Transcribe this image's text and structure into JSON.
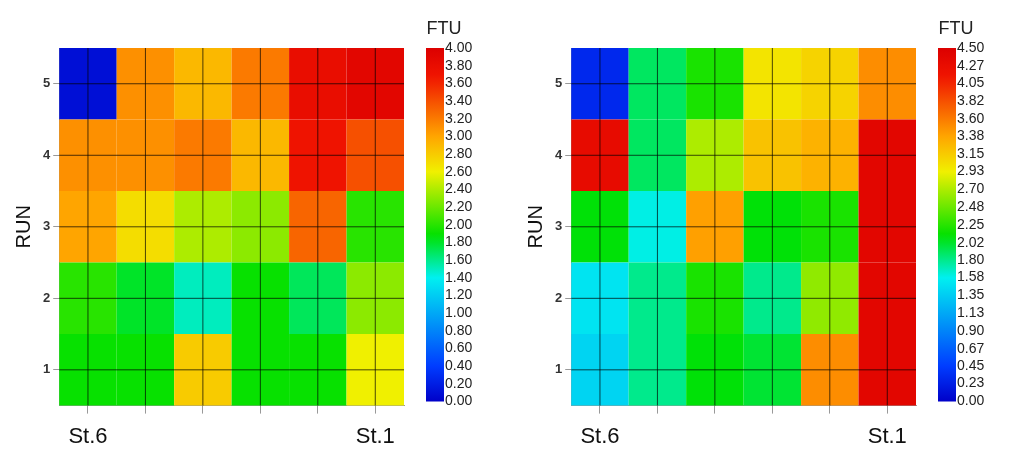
{
  "chart_data": [
    {
      "type": "heatmap",
      "ylabel": "RUN",
      "clabel": "FTU",
      "grid": true,
      "categories": [
        "St.6",
        null,
        null,
        null,
        null,
        "St.1"
      ],
      "y_categories": [
        "5",
        "4",
        "3",
        "2",
        "1"
      ],
      "cells": [
        [
          0.1,
          3.1,
          2.9,
          3.2,
          3.8,
          3.9
        ],
        [
          3.1,
          3.1,
          3.2,
          2.9,
          3.7,
          3.4
        ],
        [
          3.0,
          2.7,
          2.4,
          2.3,
          3.3,
          2.0
        ],
        [
          2.0,
          1.8,
          1.5,
          1.9,
          1.7,
          2.3
        ],
        [
          1.9,
          1.9,
          2.8,
          1.9,
          1.9,
          2.6
        ]
      ],
      "clim": [
        0,
        4
      ],
      "cticks": [
        {
          "value": 0,
          "label": "0.00"
        },
        {
          "value": 0.2,
          "label": "0.20"
        },
        {
          "value": 0.4,
          "label": "0.40"
        },
        {
          "value": 0.6,
          "label": "0.60"
        },
        {
          "value": 0.8,
          "label": "0.80"
        },
        {
          "value": 1,
          "label": "1.00"
        },
        {
          "value": 1.2,
          "label": "1.20"
        },
        {
          "value": 1.4,
          "label": "1.40"
        },
        {
          "value": 1.6,
          "label": "1.60"
        },
        {
          "value": 1.8,
          "label": "1.80"
        },
        {
          "value": 2,
          "label": "2.00"
        },
        {
          "value": 2.2,
          "label": "2.20"
        },
        {
          "value": 2.4,
          "label": "2.40"
        },
        {
          "value": 2.6,
          "label": "2.60"
        },
        {
          "value": 2.8,
          "label": "2.80"
        },
        {
          "value": 3,
          "label": "3.00"
        },
        {
          "value": 3.2,
          "label": "3.20"
        },
        {
          "value": 3.4,
          "label": "3.40"
        },
        {
          "value": 3.6,
          "label": "3.60"
        },
        {
          "value": 3.8,
          "label": "3.80"
        },
        {
          "value": 4,
          "label": "4.00"
        }
      ]
    },
    {
      "type": "heatmap",
      "ylabel": "RUN",
      "clabel": "FTU",
      "grid": true,
      "categories": [
        "St.6",
        null,
        null,
        null,
        null,
        "St.1"
      ],
      "y_categories": [
        "5",
        "4",
        "3",
        "2",
        "1"
      ],
      "cells": [
        [
          0.3,
          1.9,
          2.2,
          3.0,
          3.1,
          3.5
        ],
        [
          4.3,
          1.9,
          2.7,
          3.2,
          3.3,
          4.4
        ],
        [
          2.1,
          1.6,
          3.4,
          2.1,
          2.2,
          4.4
        ],
        [
          1.5,
          1.8,
          2.2,
          1.8,
          2.6,
          4.4
        ],
        [
          1.4,
          1.8,
          2.1,
          2.0,
          3.5,
          4.4
        ]
      ],
      "clim": [
        0,
        4.5
      ],
      "cticks": [
        {
          "value": 0,
          "label": "0.00"
        },
        {
          "value": 0.23,
          "label": "0.23"
        },
        {
          "value": 0.45,
          "label": "0.45"
        },
        {
          "value": 0.67,
          "label": "0.67"
        },
        {
          "value": 0.9,
          "label": "0.90"
        },
        {
          "value": 1.13,
          "label": "1.13"
        },
        {
          "value": 1.35,
          "label": "1.35"
        },
        {
          "value": 1.58,
          "label": "1.58"
        },
        {
          "value": 1.8,
          "label": "1.80"
        },
        {
          "value": 2.02,
          "label": "2.02"
        },
        {
          "value": 2.25,
          "label": "2.25"
        },
        {
          "value": 2.48,
          "label": "2.48"
        },
        {
          "value": 2.7,
          "label": "2.70"
        },
        {
          "value": 2.93,
          "label": "2.93"
        },
        {
          "value": 3.15,
          "label": "3.15"
        },
        {
          "value": 3.38,
          "label": "3.38"
        },
        {
          "value": 3.6,
          "label": "3.60"
        },
        {
          "value": 3.82,
          "label": "3.82"
        },
        {
          "value": 4.05,
          "label": "4.05"
        },
        {
          "value": 4.27,
          "label": "4.27"
        },
        {
          "value": 4.5,
          "label": "4.50"
        }
      ]
    }
  ]
}
